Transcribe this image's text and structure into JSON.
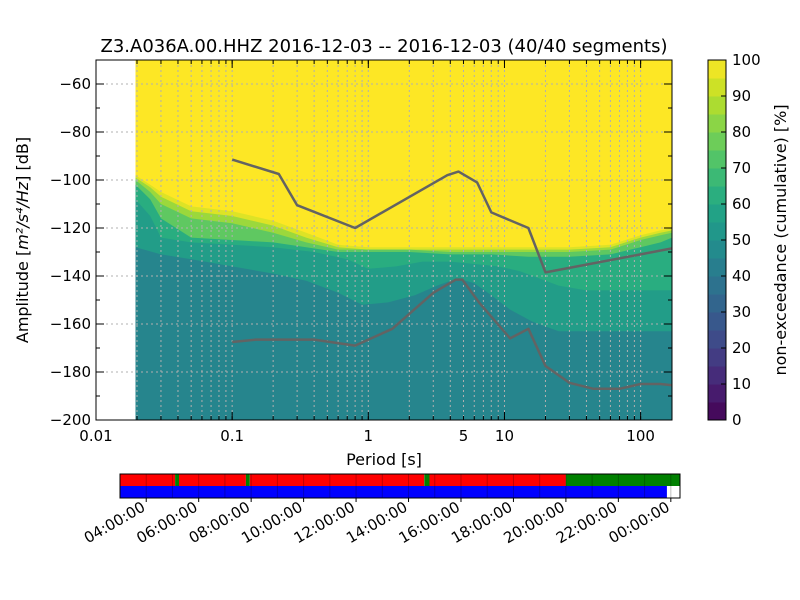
{
  "chart_data": [
    {
      "type": "heatmap",
      "title": "Z3.A036A.00.HHZ   2016-12-03 -- 2016-12-03  (40/40 segments)",
      "xlabel": "Period [s]",
      "ylabel_prefix": "Amplitude [",
      "ylabel_math": "m²/s⁴/Hz",
      "ylabel_suffix": "] [dB]",
      "x_scale": "log",
      "xlim": [
        0.01,
        170
      ],
      "ylim": [
        -200,
        -50
      ],
      "x_ticks": [
        0.01,
        0.1,
        1,
        10,
        100
      ],
      "x_tick_labels": [
        "0.01",
        "0.1",
        "1",
        "5",
        "10",
        "100"
      ],
      "x_tick_label_positions": [
        0.01,
        0.1,
        1,
        5,
        10,
        100
      ],
      "y_ticks": [
        -200,
        -180,
        -160,
        -140,
        -120,
        -100,
        -80,
        -60
      ],
      "y_tick_labels": [
        "−200",
        "−180",
        "−160",
        "−140",
        "−120",
        "−100",
        "−80",
        "−60"
      ],
      "grid": true,
      "data_start_period": 0.0195,
      "colorbar": {
        "label": "non-exceedance (cumulative) [%]",
        "ticks": [
          0,
          10,
          20,
          30,
          40,
          50,
          60,
          70,
          80,
          90,
          100
        ],
        "tick_labels": [
          "0",
          "10",
          "20",
          "30",
          "40",
          "50",
          "60",
          "70",
          "80",
          "90",
          "100"
        ],
        "colormap": "viridis"
      },
      "band_boundaries": [
        {
          "name": "b30",
          "percent": 38,
          "points": [
            [
              0.0195,
              -200
            ],
            [
              170,
              -200
            ]
          ]
        },
        {
          "name": "b38",
          "percent": 45,
          "points": [
            [
              0.0195,
              -128
            ],
            [
              0.03,
              -131
            ],
            [
              0.05,
              -133
            ],
            [
              0.1,
              -136
            ],
            [
              0.2,
              -139
            ],
            [
              0.35,
              -142
            ],
            [
              0.6,
              -147
            ],
            [
              0.9,
              -152
            ],
            [
              1.4,
              -151
            ],
            [
              2.2,
              -148
            ],
            [
              3.2,
              -144
            ],
            [
              4.5,
              -141
            ],
            [
              6,
              -143
            ],
            [
              8,
              -148
            ],
            [
              11,
              -154
            ],
            [
              16,
              -159
            ],
            [
              25,
              -163
            ],
            [
              50,
              -163
            ],
            [
              100,
              -163
            ],
            [
              170,
              -163
            ]
          ]
        },
        {
          "name": "b45",
          "percent": 55,
          "points": [
            [
              0.0195,
              -108
            ],
            [
              0.025,
              -115
            ],
            [
              0.03,
              -124
            ],
            [
              0.05,
              -126
            ],
            [
              0.1,
              -127
            ],
            [
              0.2,
              -128
            ],
            [
              0.4,
              -130
            ],
            [
              0.7,
              -133
            ],
            [
              1,
              -137
            ],
            [
              1.6,
              -136
            ],
            [
              2.5,
              -134
            ],
            [
              4,
              -134
            ],
            [
              6,
              -135
            ],
            [
              9,
              -136
            ],
            [
              13,
              -138
            ],
            [
              18,
              -141
            ],
            [
              25,
              -144
            ],
            [
              40,
              -146
            ],
            [
              100,
              -146
            ],
            [
              170,
              -146
            ]
          ]
        },
        {
          "name": "b55",
          "percent": 62,
          "points": [
            [
              0.0195,
              -102
            ],
            [
              0.025,
              -108
            ],
            [
              0.03,
              -116
            ],
            [
              0.05,
              -124
            ],
            [
              0.1,
              -125
            ],
            [
              0.2,
              -126
            ],
            [
              0.35,
              -128
            ],
            [
              0.6,
              -130
            ],
            [
              1,
              -130
            ],
            [
              2,
              -130
            ],
            [
              4,
              -131
            ],
            [
              8,
              -131
            ],
            [
              15,
              -132
            ],
            [
              30,
              -132
            ],
            [
              60,
              -131
            ],
            [
              100,
              -128
            ],
            [
              140,
              -126
            ],
            [
              170,
              -124
            ]
          ]
        },
        {
          "name": "b62",
          "percent": 75,
          "points": [
            [
              0.0195,
              -100
            ],
            [
              0.025,
              -105
            ],
            [
              0.03,
              -110
            ],
            [
              0.05,
              -116
            ],
            [
              0.1,
              -118
            ],
            [
              0.2,
              -122
            ],
            [
              0.35,
              -126
            ],
            [
              0.6,
              -129
            ],
            [
              1,
              -129
            ],
            [
              2,
              -129
            ],
            [
              4,
              -130
            ],
            [
              8,
              -130
            ],
            [
              15,
              -130
            ],
            [
              30,
              -130
            ],
            [
              60,
              -129
            ],
            [
              100,
              -125
            ],
            [
              140,
              -123
            ],
            [
              170,
              -122
            ]
          ]
        },
        {
          "name": "b75",
          "percent": 85,
          "points": [
            [
              0.0195,
              -99
            ],
            [
              0.025,
              -103
            ],
            [
              0.03,
              -107
            ],
            [
              0.05,
              -113
            ],
            [
              0.1,
              -115
            ],
            [
              0.2,
              -119
            ],
            [
              0.35,
              -124
            ],
            [
              0.6,
              -128
            ],
            [
              1,
              -129
            ],
            [
              2,
              -129
            ],
            [
              4,
              -129
            ],
            [
              8,
              -129
            ],
            [
              15,
              -129
            ],
            [
              30,
              -129
            ],
            [
              60,
              -128
            ],
            [
              100,
              -124
            ],
            [
              140,
              -122
            ],
            [
              170,
              -121
            ]
          ]
        },
        {
          "name": "b85",
          "percent": 95,
          "points": [
            [
              0.0195,
              -98
            ],
            [
              0.025,
              -102
            ],
            [
              0.03,
              -105
            ],
            [
              0.05,
              -111
            ],
            [
              0.1,
              -113
            ],
            [
              0.2,
              -117
            ],
            [
              0.35,
              -122
            ],
            [
              0.6,
              -127
            ],
            [
              1,
              -128
            ],
            [
              2,
              -128
            ],
            [
              4,
              -128
            ],
            [
              8,
              -128
            ],
            [
              15,
              -128
            ],
            [
              30,
              -128
            ],
            [
              60,
              -127
            ],
            [
              100,
              -123
            ],
            [
              140,
              -121
            ],
            [
              170,
              -120
            ]
          ]
        },
        {
          "name": "b95",
          "percent": 100,
          "points": [
            [
              0.0195,
              -50
            ],
            [
              170,
              -50
            ]
          ]
        }
      ],
      "series": [
        {
          "name": "",
          "points": [
            [
              0.1,
              -91.5
            ],
            [
              0.22,
              -97.5
            ],
            [
              0.3,
              -110.5
            ],
            [
              0.8,
              -120
            ],
            [
              3.8,
              -98
            ],
            [
              4.6,
              -96.5
            ],
            [
              6.3,
              -101
            ],
            [
              8,
              -113.5
            ],
            [
              15,
              -120
            ],
            [
              20,
              -138.5
            ],
            [
              170,
              -128.5
            ]
          ]
        },
        {
          "name": "",
          "points": [
            [
              0.1,
              -167.5
            ],
            [
              0.15,
              -166.5
            ],
            [
              0.4,
              -166.5
            ],
            [
              0.8,
              -169
            ],
            [
              1.5,
              -162
            ],
            [
              3,
              -147
            ],
            [
              4.4,
              -141.5
            ],
            [
              4.9,
              -141.5
            ],
            [
              6.5,
              -151
            ],
            [
              11,
              -166
            ],
            [
              15,
              -162
            ],
            [
              20,
              -177.5
            ],
            [
              30,
              -184.5
            ],
            [
              45,
              -187
            ],
            [
              70,
              -187
            ],
            [
              100,
              -185
            ],
            [
              140,
              -185
            ],
            [
              170,
              -185.5
            ]
          ]
        }
      ]
    },
    {
      "type": "timeline",
      "x_tick_labels": [
        "04:00:00",
        "06:00:00",
        "08:00:00",
        "10:00:00",
        "12:00:00",
        "14:00:00",
        "16:00:00",
        "18:00:00",
        "20:00:00",
        "22:00:00",
        "00:00:00"
      ],
      "x_tick_hours": [
        4,
        6,
        8,
        10,
        12,
        14,
        16,
        18,
        20,
        22,
        24
      ],
      "time_range_hours": [
        3.0,
        24.35
      ],
      "top_strip_segments": [
        {
          "color": "#ff0000",
          "start_hour": 3.0,
          "end_hour": 5.1
        },
        {
          "color": "#008000",
          "start_hour": 5.1,
          "end_hour": 5.25
        },
        {
          "color": "#ff0000",
          "start_hour": 5.25,
          "end_hour": 7.8
        },
        {
          "color": "#008000",
          "start_hour": 7.8,
          "end_hour": 7.95
        },
        {
          "color": "#ff0000",
          "start_hour": 7.95,
          "end_hour": 14.6
        },
        {
          "color": "#008000",
          "start_hour": 14.6,
          "end_hour": 14.8
        },
        {
          "color": "#ff0000",
          "start_hour": 14.8,
          "end_hour": 20.0
        },
        {
          "color": "#008000",
          "start_hour": 20.0,
          "end_hour": 24.35
        }
      ],
      "bottom_strip_segments": [
        {
          "color": "#0000ff",
          "start_hour": 3.0,
          "end_hour": 23.85
        }
      ]
    }
  ],
  "colors": {
    "line": "#636363",
    "grid": "#b0b0b0",
    "top_red": "#ff0000",
    "top_green": "#008000",
    "bottom_blue": "#0000ff"
  }
}
